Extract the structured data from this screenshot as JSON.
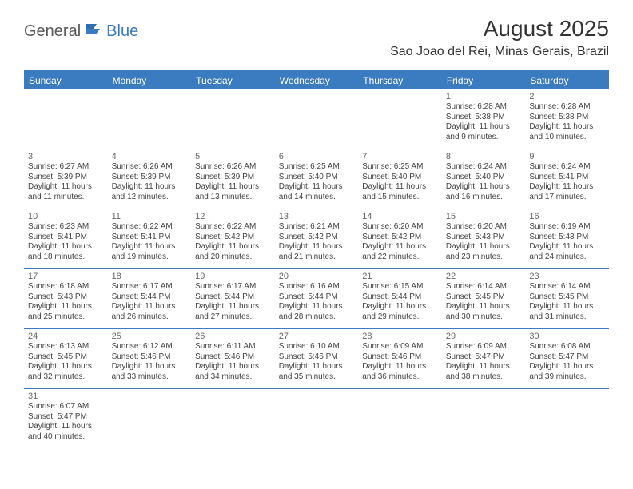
{
  "logo": {
    "word1": "General",
    "word2": "Blue"
  },
  "title": "August 2025",
  "location": "Sao Joao del Rei, Minas Gerais, Brazil",
  "colors": {
    "accent": "#3b7bbf",
    "text": "#333333",
    "muted": "#666666",
    "body": "#444444",
    "bg": "#ffffff"
  },
  "dayNames": [
    "Sunday",
    "Monday",
    "Tuesday",
    "Wednesday",
    "Thursday",
    "Friday",
    "Saturday"
  ],
  "weeks": [
    [
      null,
      null,
      null,
      null,
      null,
      {
        "n": "1",
        "sr": "6:28 AM",
        "ss": "5:38 PM",
        "dl": "11 hours and 9 minutes."
      },
      {
        "n": "2",
        "sr": "6:28 AM",
        "ss": "5:38 PM",
        "dl": "11 hours and 10 minutes."
      }
    ],
    [
      {
        "n": "3",
        "sr": "6:27 AM",
        "ss": "5:39 PM",
        "dl": "11 hours and 11 minutes."
      },
      {
        "n": "4",
        "sr": "6:26 AM",
        "ss": "5:39 PM",
        "dl": "11 hours and 12 minutes."
      },
      {
        "n": "5",
        "sr": "6:26 AM",
        "ss": "5:39 PM",
        "dl": "11 hours and 13 minutes."
      },
      {
        "n": "6",
        "sr": "6:25 AM",
        "ss": "5:40 PM",
        "dl": "11 hours and 14 minutes."
      },
      {
        "n": "7",
        "sr": "6:25 AM",
        "ss": "5:40 PM",
        "dl": "11 hours and 15 minutes."
      },
      {
        "n": "8",
        "sr": "6:24 AM",
        "ss": "5:40 PM",
        "dl": "11 hours and 16 minutes."
      },
      {
        "n": "9",
        "sr": "6:24 AM",
        "ss": "5:41 PM",
        "dl": "11 hours and 17 minutes."
      }
    ],
    [
      {
        "n": "10",
        "sr": "6:23 AM",
        "ss": "5:41 PM",
        "dl": "11 hours and 18 minutes."
      },
      {
        "n": "11",
        "sr": "6:22 AM",
        "ss": "5:41 PM",
        "dl": "11 hours and 19 minutes."
      },
      {
        "n": "12",
        "sr": "6:22 AM",
        "ss": "5:42 PM",
        "dl": "11 hours and 20 minutes."
      },
      {
        "n": "13",
        "sr": "6:21 AM",
        "ss": "5:42 PM",
        "dl": "11 hours and 21 minutes."
      },
      {
        "n": "14",
        "sr": "6:20 AM",
        "ss": "5:42 PM",
        "dl": "11 hours and 22 minutes."
      },
      {
        "n": "15",
        "sr": "6:20 AM",
        "ss": "5:43 PM",
        "dl": "11 hours and 23 minutes."
      },
      {
        "n": "16",
        "sr": "6:19 AM",
        "ss": "5:43 PM",
        "dl": "11 hours and 24 minutes."
      }
    ],
    [
      {
        "n": "17",
        "sr": "6:18 AM",
        "ss": "5:43 PM",
        "dl": "11 hours and 25 minutes."
      },
      {
        "n": "18",
        "sr": "6:17 AM",
        "ss": "5:44 PM",
        "dl": "11 hours and 26 minutes."
      },
      {
        "n": "19",
        "sr": "6:17 AM",
        "ss": "5:44 PM",
        "dl": "11 hours and 27 minutes."
      },
      {
        "n": "20",
        "sr": "6:16 AM",
        "ss": "5:44 PM",
        "dl": "11 hours and 28 minutes."
      },
      {
        "n": "21",
        "sr": "6:15 AM",
        "ss": "5:44 PM",
        "dl": "11 hours and 29 minutes."
      },
      {
        "n": "22",
        "sr": "6:14 AM",
        "ss": "5:45 PM",
        "dl": "11 hours and 30 minutes."
      },
      {
        "n": "23",
        "sr": "6:14 AM",
        "ss": "5:45 PM",
        "dl": "11 hours and 31 minutes."
      }
    ],
    [
      {
        "n": "24",
        "sr": "6:13 AM",
        "ss": "5:45 PM",
        "dl": "11 hours and 32 minutes."
      },
      {
        "n": "25",
        "sr": "6:12 AM",
        "ss": "5:46 PM",
        "dl": "11 hours and 33 minutes."
      },
      {
        "n": "26",
        "sr": "6:11 AM",
        "ss": "5:46 PM",
        "dl": "11 hours and 34 minutes."
      },
      {
        "n": "27",
        "sr": "6:10 AM",
        "ss": "5:46 PM",
        "dl": "11 hours and 35 minutes."
      },
      {
        "n": "28",
        "sr": "6:09 AM",
        "ss": "5:46 PM",
        "dl": "11 hours and 36 minutes."
      },
      {
        "n": "29",
        "sr": "6:09 AM",
        "ss": "5:47 PM",
        "dl": "11 hours and 38 minutes."
      },
      {
        "n": "30",
        "sr": "6:08 AM",
        "ss": "5:47 PM",
        "dl": "11 hours and 39 minutes."
      }
    ],
    [
      {
        "n": "31",
        "sr": "6:07 AM",
        "ss": "5:47 PM",
        "dl": "11 hours and 40 minutes."
      },
      null,
      null,
      null,
      null,
      null,
      null
    ]
  ],
  "labels": {
    "sunrise": "Sunrise:",
    "sunset": "Sunset:",
    "daylight": "Daylight:"
  }
}
